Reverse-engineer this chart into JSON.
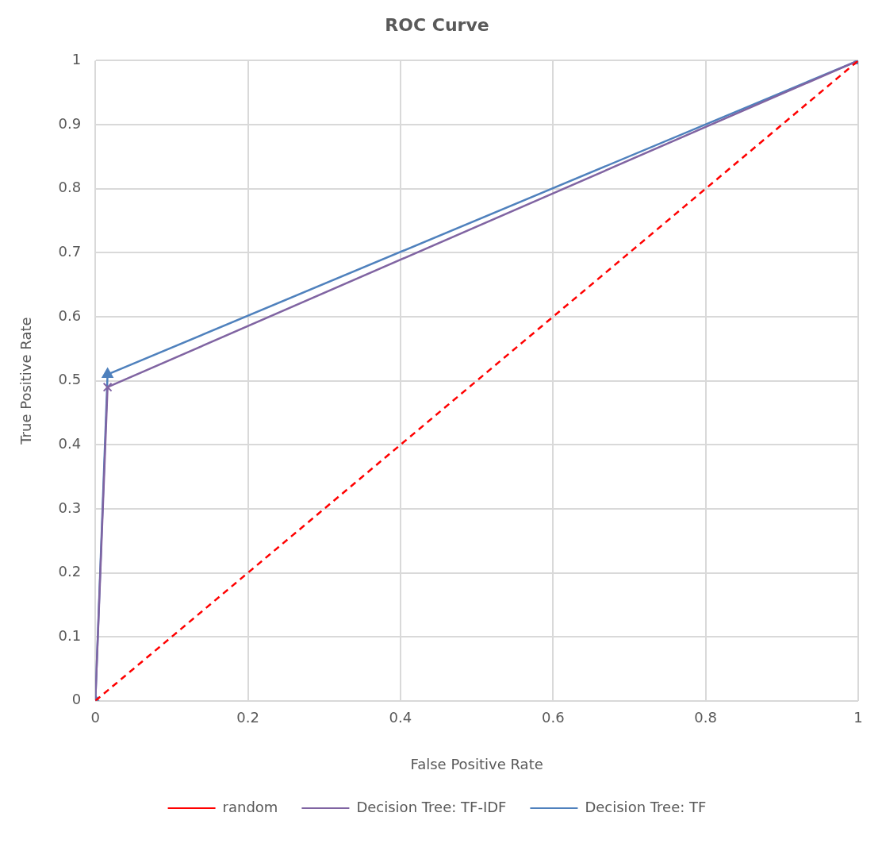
{
  "chart_data": {
    "type": "line",
    "title": "ROC Curve",
    "xlabel": "False Positive Rate",
    "ylabel": "True Positive Rate",
    "xlim": [
      0,
      1
    ],
    "xticks": [
      0,
      0.2,
      0.4,
      0.6,
      0.8,
      1
    ],
    "ylim": [
      0,
      1
    ],
    "yticks": [
      0,
      0.1,
      0.2,
      0.3,
      0.4,
      0.5,
      0.6,
      0.7,
      0.8,
      0.9,
      1
    ],
    "grid": true,
    "legend": "bottom",
    "series": [
      {
        "name": "random",
        "color": "#ff0000",
        "x": [
          0,
          1
        ],
        "values": [
          0,
          1
        ],
        "line_style": "dashed",
        "marker": "none"
      },
      {
        "name": "Decision Tree: TF-IDF",
        "color": "#8064a2",
        "x": [
          0,
          0.016,
          1
        ],
        "values": [
          0,
          0.49,
          1
        ],
        "line_style": "solid",
        "marker": "cross"
      },
      {
        "name": "Decision Tree: TF",
        "color": "#4f81bd",
        "x": [
          0,
          0.016,
          1
        ],
        "values": [
          0,
          0.51,
          1
        ],
        "line_style": "solid",
        "marker": "triangle"
      }
    ]
  }
}
